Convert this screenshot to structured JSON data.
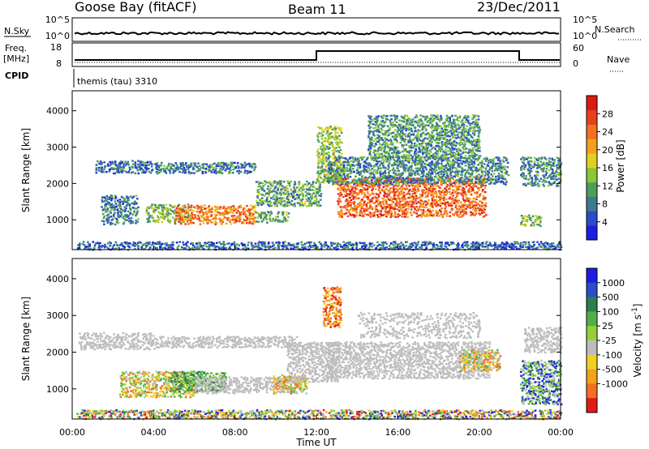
{
  "header": {
    "station": "Goose Bay (fitACF)",
    "beam": "Beam 11",
    "date": "23/Dec/2011"
  },
  "strip_panels": {
    "nsky_label": "N.Sky",
    "nsky_ticks": [
      "10^5",
      "10^0"
    ],
    "nsearch_label": "N.Search",
    "nsearch_ticks": [
      "10^5",
      "10^0"
    ],
    "freq_label_line1": "Freq.",
    "freq_label_line2": "[MHz]",
    "freq_ticks": [
      "18",
      "8"
    ],
    "nave_label": "Nave",
    "nave_ticks": [
      "60",
      "0"
    ],
    "cpid_label": "CPID",
    "cpid_value": "themis (tau) 3310"
  },
  "colors": {
    "background": "#ffffff",
    "no_data": "#ffffff",
    "ground_scatter": "#bdbdbd"
  },
  "chart_data": [
    {
      "type": "heatmap",
      "panel": "power",
      "title": "",
      "xlabel": "",
      "ylabel": "Slant Range [km]",
      "x_ticks": [
        "00:00",
        "04:00",
        "08:00",
        "12:00",
        "16:00",
        "20:00",
        "00:00"
      ],
      "x_range_hours": [
        0,
        24
      ],
      "y_ticks": [
        1000,
        2000,
        3000,
        4000
      ],
      "ylim": [
        180,
        4550
      ],
      "colorbar": {
        "label": "Power [dB]",
        "ticks": [
          4,
          8,
          12,
          16,
          20,
          24,
          28
        ],
        "range": [
          0,
          32
        ],
        "colors": [
          "#1e1ee0",
          "#2a4cc8",
          "#3d7a8e",
          "#4aa05a",
          "#8cc63a",
          "#e0d020",
          "#f5a01c",
          "#f27020",
          "#e8401a",
          "#dc1a14"
        ]
      },
      "regions": [
        {
          "t0": 1.1,
          "t1": 3.9,
          "r0": 2300,
          "r1": 2650,
          "level": 0.22
        },
        {
          "t0": 1.4,
          "t1": 3.2,
          "r0": 900,
          "r1": 1700,
          "level": 0.25
        },
        {
          "t0": 3.6,
          "t1": 5.8,
          "r0": 950,
          "r1": 1450,
          "level": 0.42
        },
        {
          "t0": 5.0,
          "t1": 9.0,
          "r0": 900,
          "r1": 1420,
          "level": 0.72
        },
        {
          "t0": 9.0,
          "t1": 10.6,
          "r0": 950,
          "r1": 1250,
          "level": 0.38
        },
        {
          "t0": 4.0,
          "t1": 9.0,
          "r0": 2300,
          "r1": 2600,
          "level": 0.25
        },
        {
          "t0": 9.0,
          "t1": 12.2,
          "r0": 1400,
          "r1": 2100,
          "level": 0.35
        },
        {
          "t0": 12.0,
          "t1": 13.2,
          "r0": 2000,
          "r1": 3600,
          "level": 0.45
        },
        {
          "t0": 13.0,
          "t1": 20.3,
          "r0": 1100,
          "r1": 2200,
          "level": 0.78
        },
        {
          "t0": 12.5,
          "t1": 21.4,
          "r0": 2000,
          "r1": 2750,
          "level": 0.28
        },
        {
          "t0": 14.5,
          "t1": 20.0,
          "r0": 2700,
          "r1": 3900,
          "level": 0.32
        },
        {
          "t0": 22.0,
          "t1": 24.0,
          "r0": 1950,
          "r1": 2750,
          "level": 0.3
        },
        {
          "t0": 22.0,
          "t1": 23.0,
          "r0": 850,
          "r1": 1150,
          "level": 0.42
        },
        {
          "t0": 0.2,
          "t1": 24.0,
          "r0": 200,
          "r1": 420,
          "level": 0.2
        }
      ]
    },
    {
      "type": "heatmap",
      "panel": "velocity",
      "title": "",
      "xlabel": "Time UT",
      "ylabel": "Slant Range [km]",
      "x_ticks": [
        "00:00",
        "04:00",
        "08:00",
        "12:00",
        "16:00",
        "20:00",
        "00:00"
      ],
      "x_range_hours": [
        0,
        24
      ],
      "y_ticks": [
        1000,
        2000,
        3000,
        4000
      ],
      "ylim": [
        180,
        4550
      ],
      "colorbar": {
        "label": "Velocity [m s^-1]",
        "labels": [
          "1000",
          "500",
          "100",
          "25",
          "-25",
          "-100",
          "-500",
          "-1000"
        ],
        "colors": [
          "#1e1ee0",
          "#2a4cc8",
          "#2e7d4a",
          "#4fb04a",
          "#94d03a",
          "#bdbdbd",
          "#f0d020",
          "#f5a01c",
          "#f27020",
          "#e01a14"
        ]
      },
      "regions": [
        {
          "t0": 0.3,
          "t1": 4.0,
          "r0": 2100,
          "r1": 2550,
          "cls": "gs"
        },
        {
          "t0": 4.0,
          "t1": 11.0,
          "r0": 2150,
          "r1": 2450,
          "cls": "gs"
        },
        {
          "t0": 2.3,
          "t1": 6.0,
          "r0": 800,
          "r1": 1500,
          "cls": "mix_neg"
        },
        {
          "t0": 4.8,
          "t1": 7.5,
          "r0": 950,
          "r1": 1500,
          "cls": "green"
        },
        {
          "t0": 6.0,
          "t1": 11.0,
          "r0": 900,
          "r1": 1350,
          "cls": "gs"
        },
        {
          "t0": 9.8,
          "t1": 11.5,
          "r0": 900,
          "r1": 1400,
          "cls": "mix_neg"
        },
        {
          "t0": 10.5,
          "t1": 13.0,
          "r0": 1200,
          "r1": 2300,
          "cls": "gs"
        },
        {
          "t0": 12.3,
          "t1": 13.2,
          "r0": 2700,
          "r1": 3800,
          "cls": "neg"
        },
        {
          "t0": 12.5,
          "t1": 20.5,
          "r0": 1300,
          "r1": 2300,
          "cls": "gs"
        },
        {
          "t0": 14.0,
          "t1": 20.0,
          "r0": 2400,
          "r1": 3100,
          "cls": "gs_sparse"
        },
        {
          "t0": 19.0,
          "t1": 21.0,
          "r0": 1500,
          "r1": 2100,
          "cls": "mix_neg"
        },
        {
          "t0": 22.2,
          "t1": 24.0,
          "r0": 2000,
          "r1": 2700,
          "cls": "gs"
        },
        {
          "t0": 22.0,
          "t1": 24.0,
          "r0": 600,
          "r1": 1800,
          "cls": "mix_pos"
        },
        {
          "t0": 0.2,
          "t1": 24.0,
          "r0": 200,
          "r1": 450,
          "cls": "mix_all"
        }
      ]
    }
  ]
}
